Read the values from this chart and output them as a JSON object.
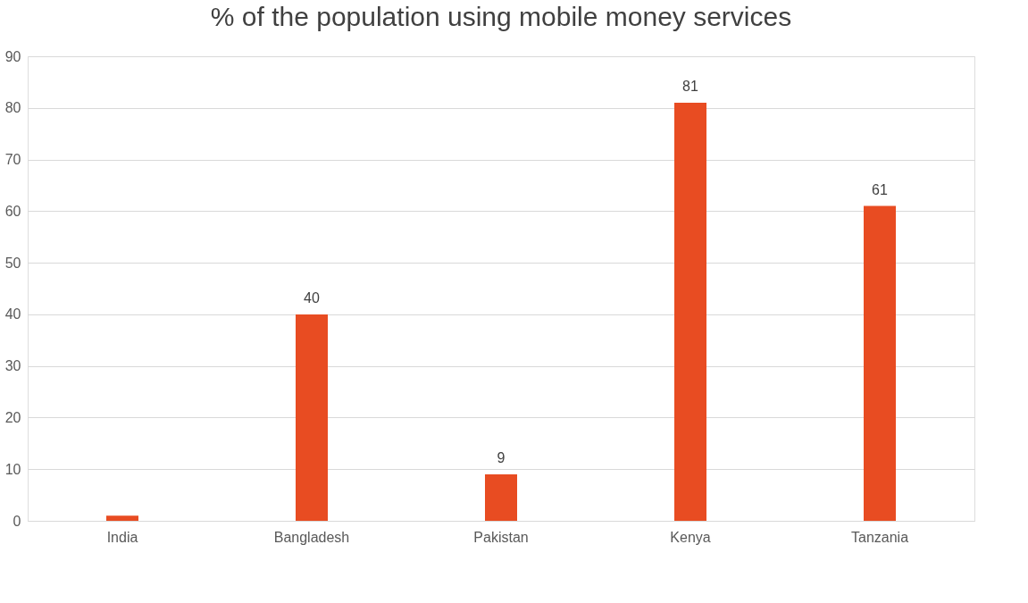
{
  "chart_data": {
    "type": "bar",
    "title": "% of the population using mobile money services",
    "categories": [
      "India",
      "Bangladesh",
      "Pakistan",
      "Kenya",
      "Tanzania"
    ],
    "series": [
      {
        "color": "#e84c22",
        "values": [
          1,
          40,
          9,
          81,
          61
        ],
        "value_labels": [
          null,
          "40",
          "9",
          "81",
          "61"
        ]
      }
    ],
    "ylim": [
      0,
      90
    ],
    "yticks": [
      0,
      10,
      20,
      30,
      40,
      50,
      60,
      70,
      80,
      90
    ],
    "grid": "y"
  }
}
